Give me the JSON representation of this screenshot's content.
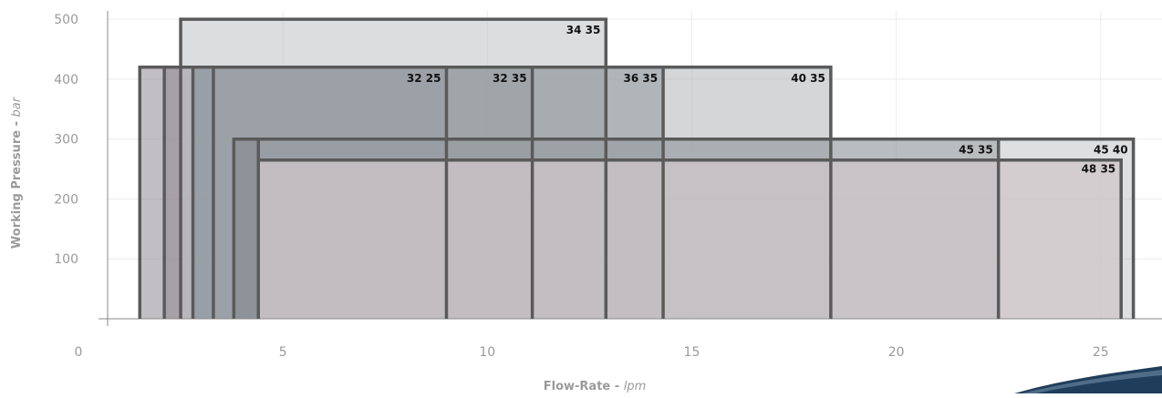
{
  "chart_data": {
    "type": "area",
    "title": "",
    "xlabel": "Flow-Rate",
    "xunit": "lpm",
    "ylabel": "Working Pressure",
    "yunit": "bar",
    "xlim": [
      0,
      26.5
    ],
    "ylim": [
      0,
      520
    ],
    "x_ticks": [
      0,
      5,
      10,
      15,
      20,
      25
    ],
    "y_ticks": [
      100,
      200,
      300,
      400,
      500
    ],
    "grid": true,
    "legend": "none",
    "series": [
      {
        "label": "32 25",
        "x": [
          1.5,
          9.0
        ],
        "y": 420,
        "fill": "#8e8b93",
        "opacity": 0.55
      },
      {
        "label": "32 35",
        "x": [
          2.1,
          11.1
        ],
        "y": 420,
        "fill": "#8c8289",
        "opacity": 0.5
      },
      {
        "label": "34 35",
        "x": [
          2.5,
          12.9
        ],
        "y": 500,
        "fill": "#c3c6ca",
        "opacity": 0.6
      },
      {
        "label": "36 35",
        "x": [
          2.8,
          14.3
        ],
        "y": 420,
        "fill": "#7b8790",
        "opacity": 0.5
      },
      {
        "label": "40 35",
        "x": [
          3.3,
          18.4
        ],
        "y": 420,
        "fill": "#9fa3a8",
        "opacity": 0.45
      },
      {
        "label": "45 35",
        "x": [
          3.8,
          22.5
        ],
        "y": 300,
        "fill": "#7c8389",
        "opacity": 0.45
      },
      {
        "label": "45 40",
        "x": [
          4.4,
          25.8
        ],
        "y": 300,
        "fill": "#a9aeb2",
        "opacity": 0.4
      },
      {
        "label": "48 35",
        "x": [
          4.4,
          25.5
        ],
        "y": 265,
        "fill": "#cfc7ca",
        "opacity": 0.75
      }
    ]
  }
}
